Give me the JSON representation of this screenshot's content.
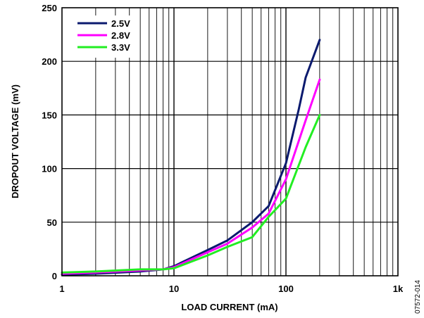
{
  "chart_data": {
    "type": "line",
    "xlabel": "LOAD CURRENT (mA)",
    "ylabel": "DROPOUT VOLTAGE (mV)",
    "x_scale": "log",
    "xlim": [
      1,
      1000
    ],
    "ylim": [
      0,
      250
    ],
    "x_ticks": [
      1,
      10,
      100,
      1000
    ],
    "x_tick_labels": [
      "1",
      "10",
      "100",
      "1k"
    ],
    "y_ticks": [
      0,
      50,
      100,
      150,
      200,
      250
    ],
    "y_tick_labels": [
      "0",
      "50",
      "100",
      "150",
      "200",
      "250"
    ],
    "grid": true,
    "legend_position": "top-left",
    "series": [
      {
        "name": "2.5V",
        "color": "#0b1a6e",
        "x": [
          1,
          2,
          5,
          8,
          10,
          20,
          30,
          50,
          70,
          100,
          130,
          150,
          200
        ],
        "y": [
          1,
          2,
          4,
          6,
          9,
          24,
          33,
          50,
          65,
          105,
          155,
          185,
          220
        ]
      },
      {
        "name": "2.8V",
        "color": "#ff00ff",
        "x": [
          1,
          2,
          5,
          8,
          10,
          20,
          30,
          50,
          70,
          100,
          150,
          200
        ],
        "y": [
          2,
          3,
          5,
          6,
          8,
          22,
          30,
          45,
          58,
          90,
          145,
          183
        ]
      },
      {
        "name": "3.3V",
        "color": "#22ee22",
        "x": [
          1,
          2,
          5,
          8,
          10,
          20,
          30,
          50,
          70,
          100,
          150,
          200
        ],
        "y": [
          3,
          4,
          6,
          6,
          7,
          19,
          27,
          36,
          55,
          72,
          120,
          150
        ]
      }
    ]
  },
  "figure_id": "07572-014"
}
